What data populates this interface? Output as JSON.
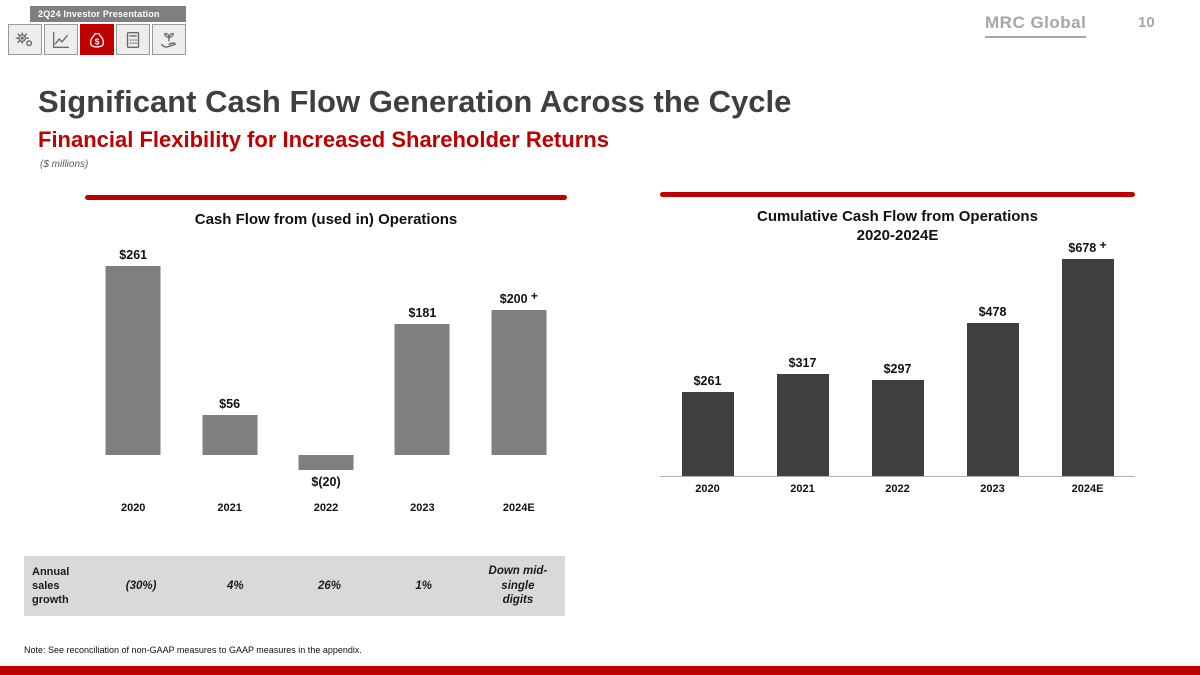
{
  "header": {
    "tab_label": "2Q24  Investor Presentation",
    "logo_text": "MRC Global",
    "page_number": "10",
    "nav_icons": [
      "gears-icon",
      "line-chart-icon",
      "money-bag-icon",
      "calculator-icon",
      "hand-plant-icon"
    ],
    "active_nav_icon": "money-bag-icon"
  },
  "page_title": "Significant Cash Flow Generation Across the Cycle",
  "page_subtitle": "Financial Flexibility for Increased Shareholder Returns",
  "units_note": "($ millions)",
  "chart_data": [
    {
      "type": "bar",
      "title": "Cash Flow from (used in) Operations",
      "categories": [
        "2020",
        "2021",
        "2022",
        "2023",
        "2024E"
      ],
      "values": [
        261,
        56,
        -20,
        181,
        200
      ],
      "labels": [
        "$261",
        "$56",
        "$(20)",
        "$181",
        "$200 +"
      ],
      "bar_color": "#7f7f7f",
      "ylim": [
        -45,
        300
      ],
      "axis_line": false,
      "grid": false,
      "legend": false,
      "accent_color": "#c00000"
    },
    {
      "type": "bar",
      "title": "Cumulative Cash Flow from Operations",
      "title_line2": "2020-2024E",
      "categories": [
        "2020",
        "2021",
        "2022",
        "2023",
        "2024E"
      ],
      "values": [
        261,
        317,
        297,
        478,
        678
      ],
      "labels": [
        "$261",
        "$317",
        "$297",
        "$478",
        "$678 +"
      ],
      "bar_color": "#3f3f3f",
      "ylim": [
        0,
        700
      ],
      "axis_line": true,
      "grid": false,
      "legend": false,
      "accent_color": "#c00000"
    }
  ],
  "growth_table": {
    "row_label": "Annual sales growth",
    "values": [
      "(30%)",
      "4%",
      "26%",
      "1%",
      "Down mid-single digits"
    ]
  },
  "footnote": "Note: See reconciliation of non-GAAP measures to GAAP measures in the appendix.",
  "colors": {
    "accent_red": "#c00000",
    "title_gray": "#3f3f3f",
    "left_bar_gray": "#7f7f7f",
    "right_bar_dark": "#3f3f3f",
    "table_bg": "#d9d9d9",
    "logo_gray": "#a6a6a6"
  }
}
